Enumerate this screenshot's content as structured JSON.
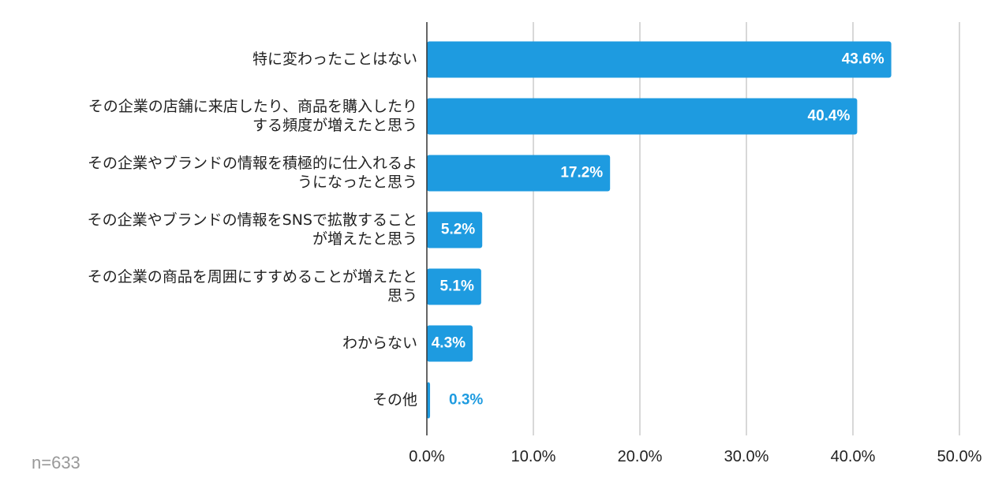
{
  "chart_data": {
    "type": "bar",
    "orientation": "horizontal",
    "categories": [
      [
        "特に変わったことはない"
      ],
      [
        "その企業の店舗に来店したり、商品を購入したり",
        "する頻度が増えたと思う"
      ],
      [
        "その企業やブランドの情報を積極的に仕入れるよ",
        "うになったと思う"
      ],
      [
        "その企業やブランドの情報をSNSで拡散すること",
        "が増えたと思う"
      ],
      [
        "その企業の商品を周囲にすすめることが増えたと",
        "思う"
      ],
      [
        "わからない"
      ],
      [
        "その他"
      ]
    ],
    "values": [
      43.6,
      40.4,
      17.2,
      5.2,
      5.1,
      4.3,
      0.3
    ],
    "value_labels": [
      "43.6%",
      "40.4%",
      "17.2%",
      "5.2%",
      "5.1%",
      "4.3%",
      "0.3%"
    ],
    "xlim": [
      0,
      50
    ],
    "xticks": [
      0,
      10,
      20,
      30,
      40,
      50
    ],
    "xtick_labels": [
      "0.0%",
      "10.0%",
      "20.0%",
      "30.0%",
      "40.0%",
      "50.0%"
    ],
    "grid": true,
    "legend": "none",
    "bar_color": "#1e9be0",
    "inside_label_color": "#ffffff",
    "outside_label_color": "#1e9be0",
    "note": "n=633"
  }
}
